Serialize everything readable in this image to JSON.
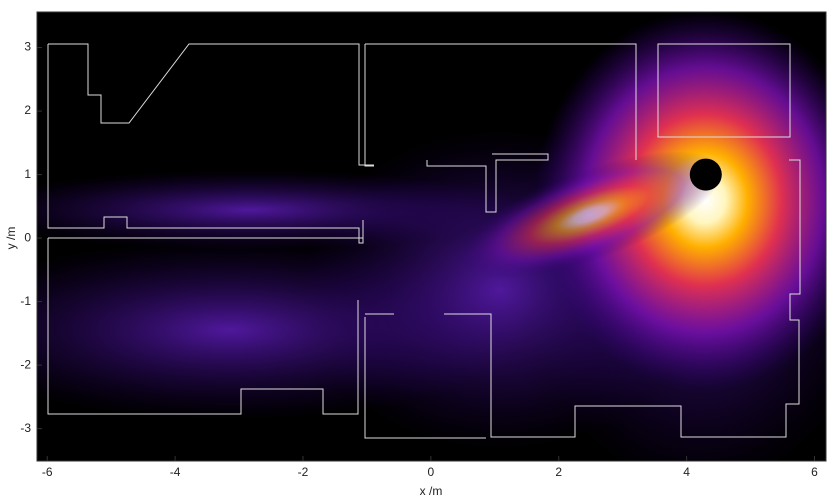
{
  "chart_data": {
    "type": "heatmap",
    "x_label": "x /m",
    "y_label": "y /m",
    "xlim": [
      -6.16,
      6.18
    ],
    "ylim": [
      -3.51,
      3.56
    ],
    "xticks": [
      -6,
      -4,
      -2,
      0,
      2,
      4,
      6
    ],
    "yticks": [
      -3,
      -2,
      -1,
      0,
      1,
      2,
      3
    ],
    "source": {
      "x": 4.3,
      "y": 1.0,
      "color": "#000000"
    }
  }
}
